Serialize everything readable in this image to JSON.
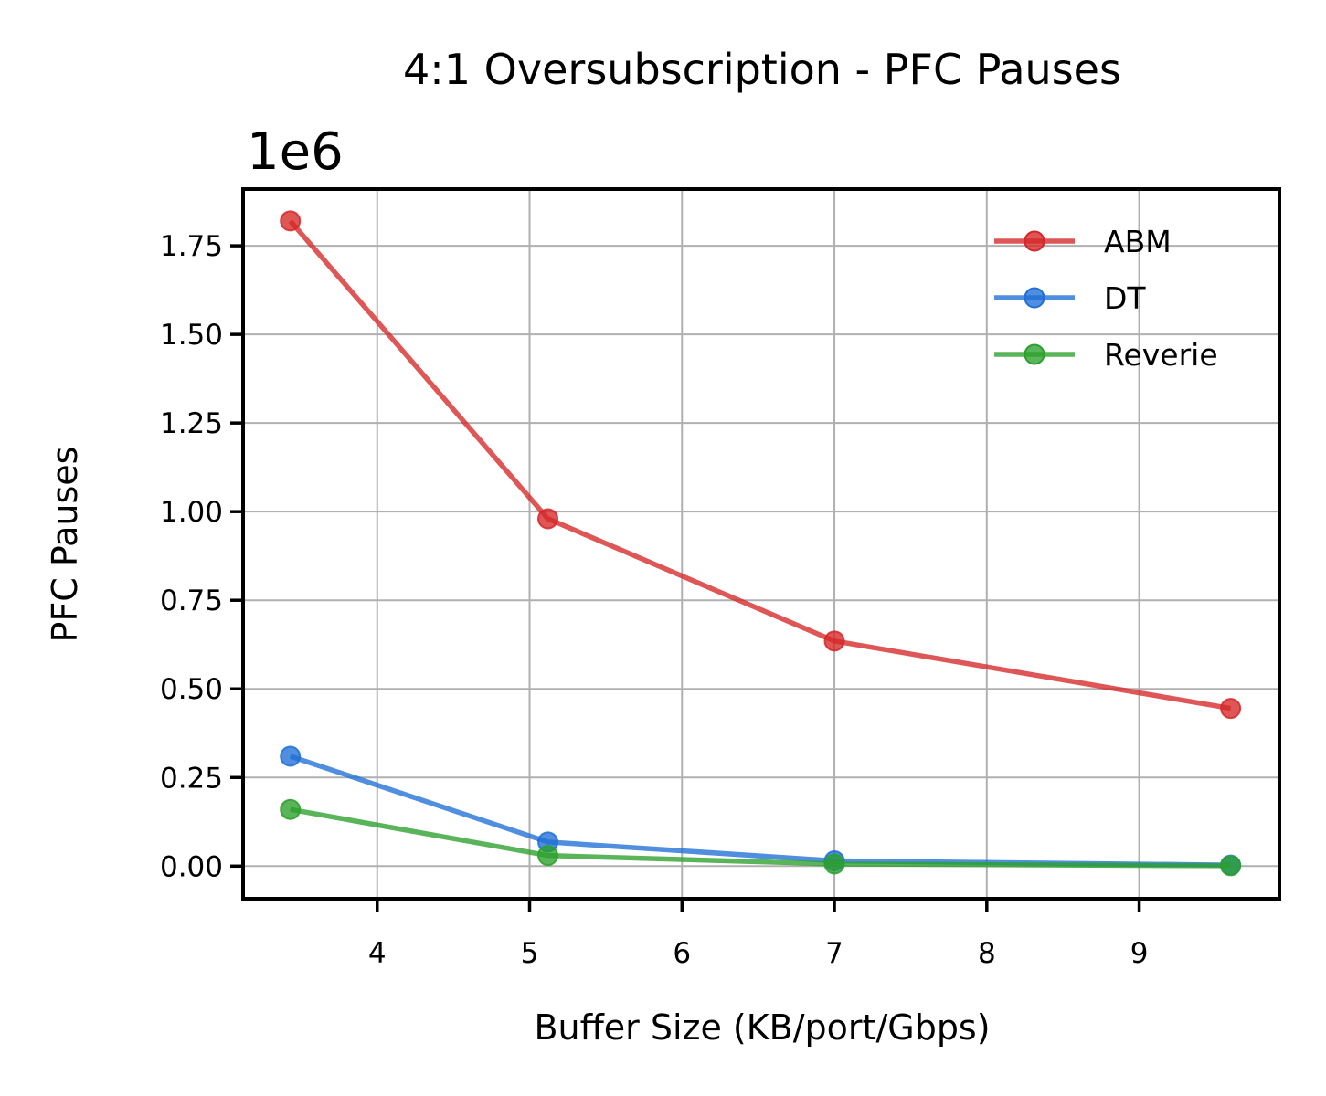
{
  "chart_data": {
    "type": "line",
    "title": "4:1 Oversubscription - PFC Pauses",
    "xlabel": "Buffer Size (KB/port/Gbps)",
    "ylabel": "PFC Pauses",
    "y_offset_label": "1e6",
    "xlim": [
      3.12,
      9.92
    ],
    "ylim": [
      -0.092,
      1.91
    ],
    "x_ticks": [
      4,
      5,
      6,
      7,
      8,
      9
    ],
    "x_tick_labels": [
      "4",
      "5",
      "6",
      "7",
      "8",
      "9"
    ],
    "y_ticks": [
      0.0,
      0.25,
      0.5,
      0.75,
      1.0,
      1.25,
      1.5,
      1.75
    ],
    "y_tick_labels": [
      "0.00",
      "0.25",
      "0.50",
      "0.75",
      "1.00",
      "1.25",
      "1.50",
      "1.75"
    ],
    "grid": true,
    "legend_position": "top-right",
    "x": [
      3.43,
      5.12,
      7.0,
      9.6
    ],
    "series": [
      {
        "name": "ABM",
        "color": "#d62728",
        "values": [
          1.82,
          0.98,
          0.635,
          0.445
        ]
      },
      {
        "name": "DT",
        "color": "#1f6fd6",
        "values": [
          0.31,
          0.068,
          0.015,
          0.003
        ]
      },
      {
        "name": "Reverie",
        "color": "#2ca02c",
        "values": [
          0.16,
          0.03,
          0.006,
          0.001
        ]
      }
    ]
  }
}
